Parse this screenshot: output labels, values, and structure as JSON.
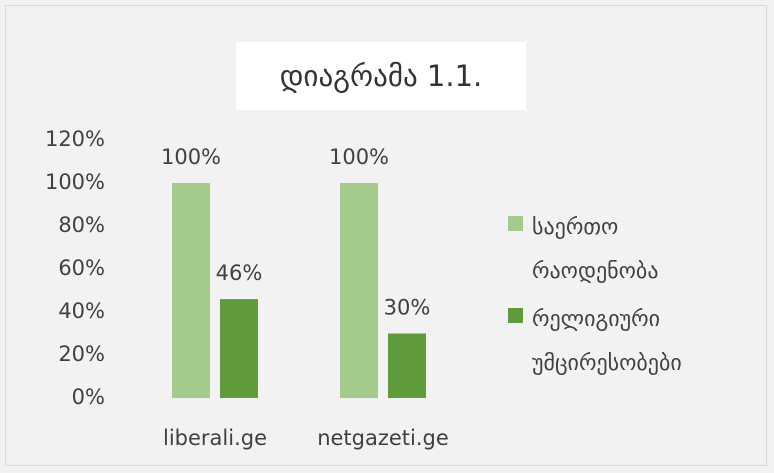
{
  "chart_data": {
    "type": "bar",
    "title": "დიაგრამა 1.1.",
    "categories": [
      "liberali.ge",
      "netgazeti.ge"
    ],
    "series": [
      {
        "name": "საერთო რაოდენობა",
        "color": "#a5cb8c",
        "values": [
          100,
          100
        ],
        "value_labels": [
          "100%",
          "100%"
        ]
      },
      {
        "name": "რელიგიური უმცირესობები",
        "color": "#5f9b3b",
        "values": [
          46,
          30
        ],
        "value_labels": [
          "46%",
          "30%"
        ]
      }
    ],
    "ylim": [
      0,
      120
    ],
    "yticks": [
      {
        "value": 0,
        "label": "0%"
      },
      {
        "value": 20,
        "label": "20%"
      },
      {
        "value": 40,
        "label": "40%"
      },
      {
        "value": 60,
        "label": "60%"
      },
      {
        "value": 80,
        "label": "80%"
      },
      {
        "value": 100,
        "label": "100%"
      },
      {
        "value": 120,
        "label": "120%"
      }
    ],
    "grid": false,
    "legend": "right"
  }
}
